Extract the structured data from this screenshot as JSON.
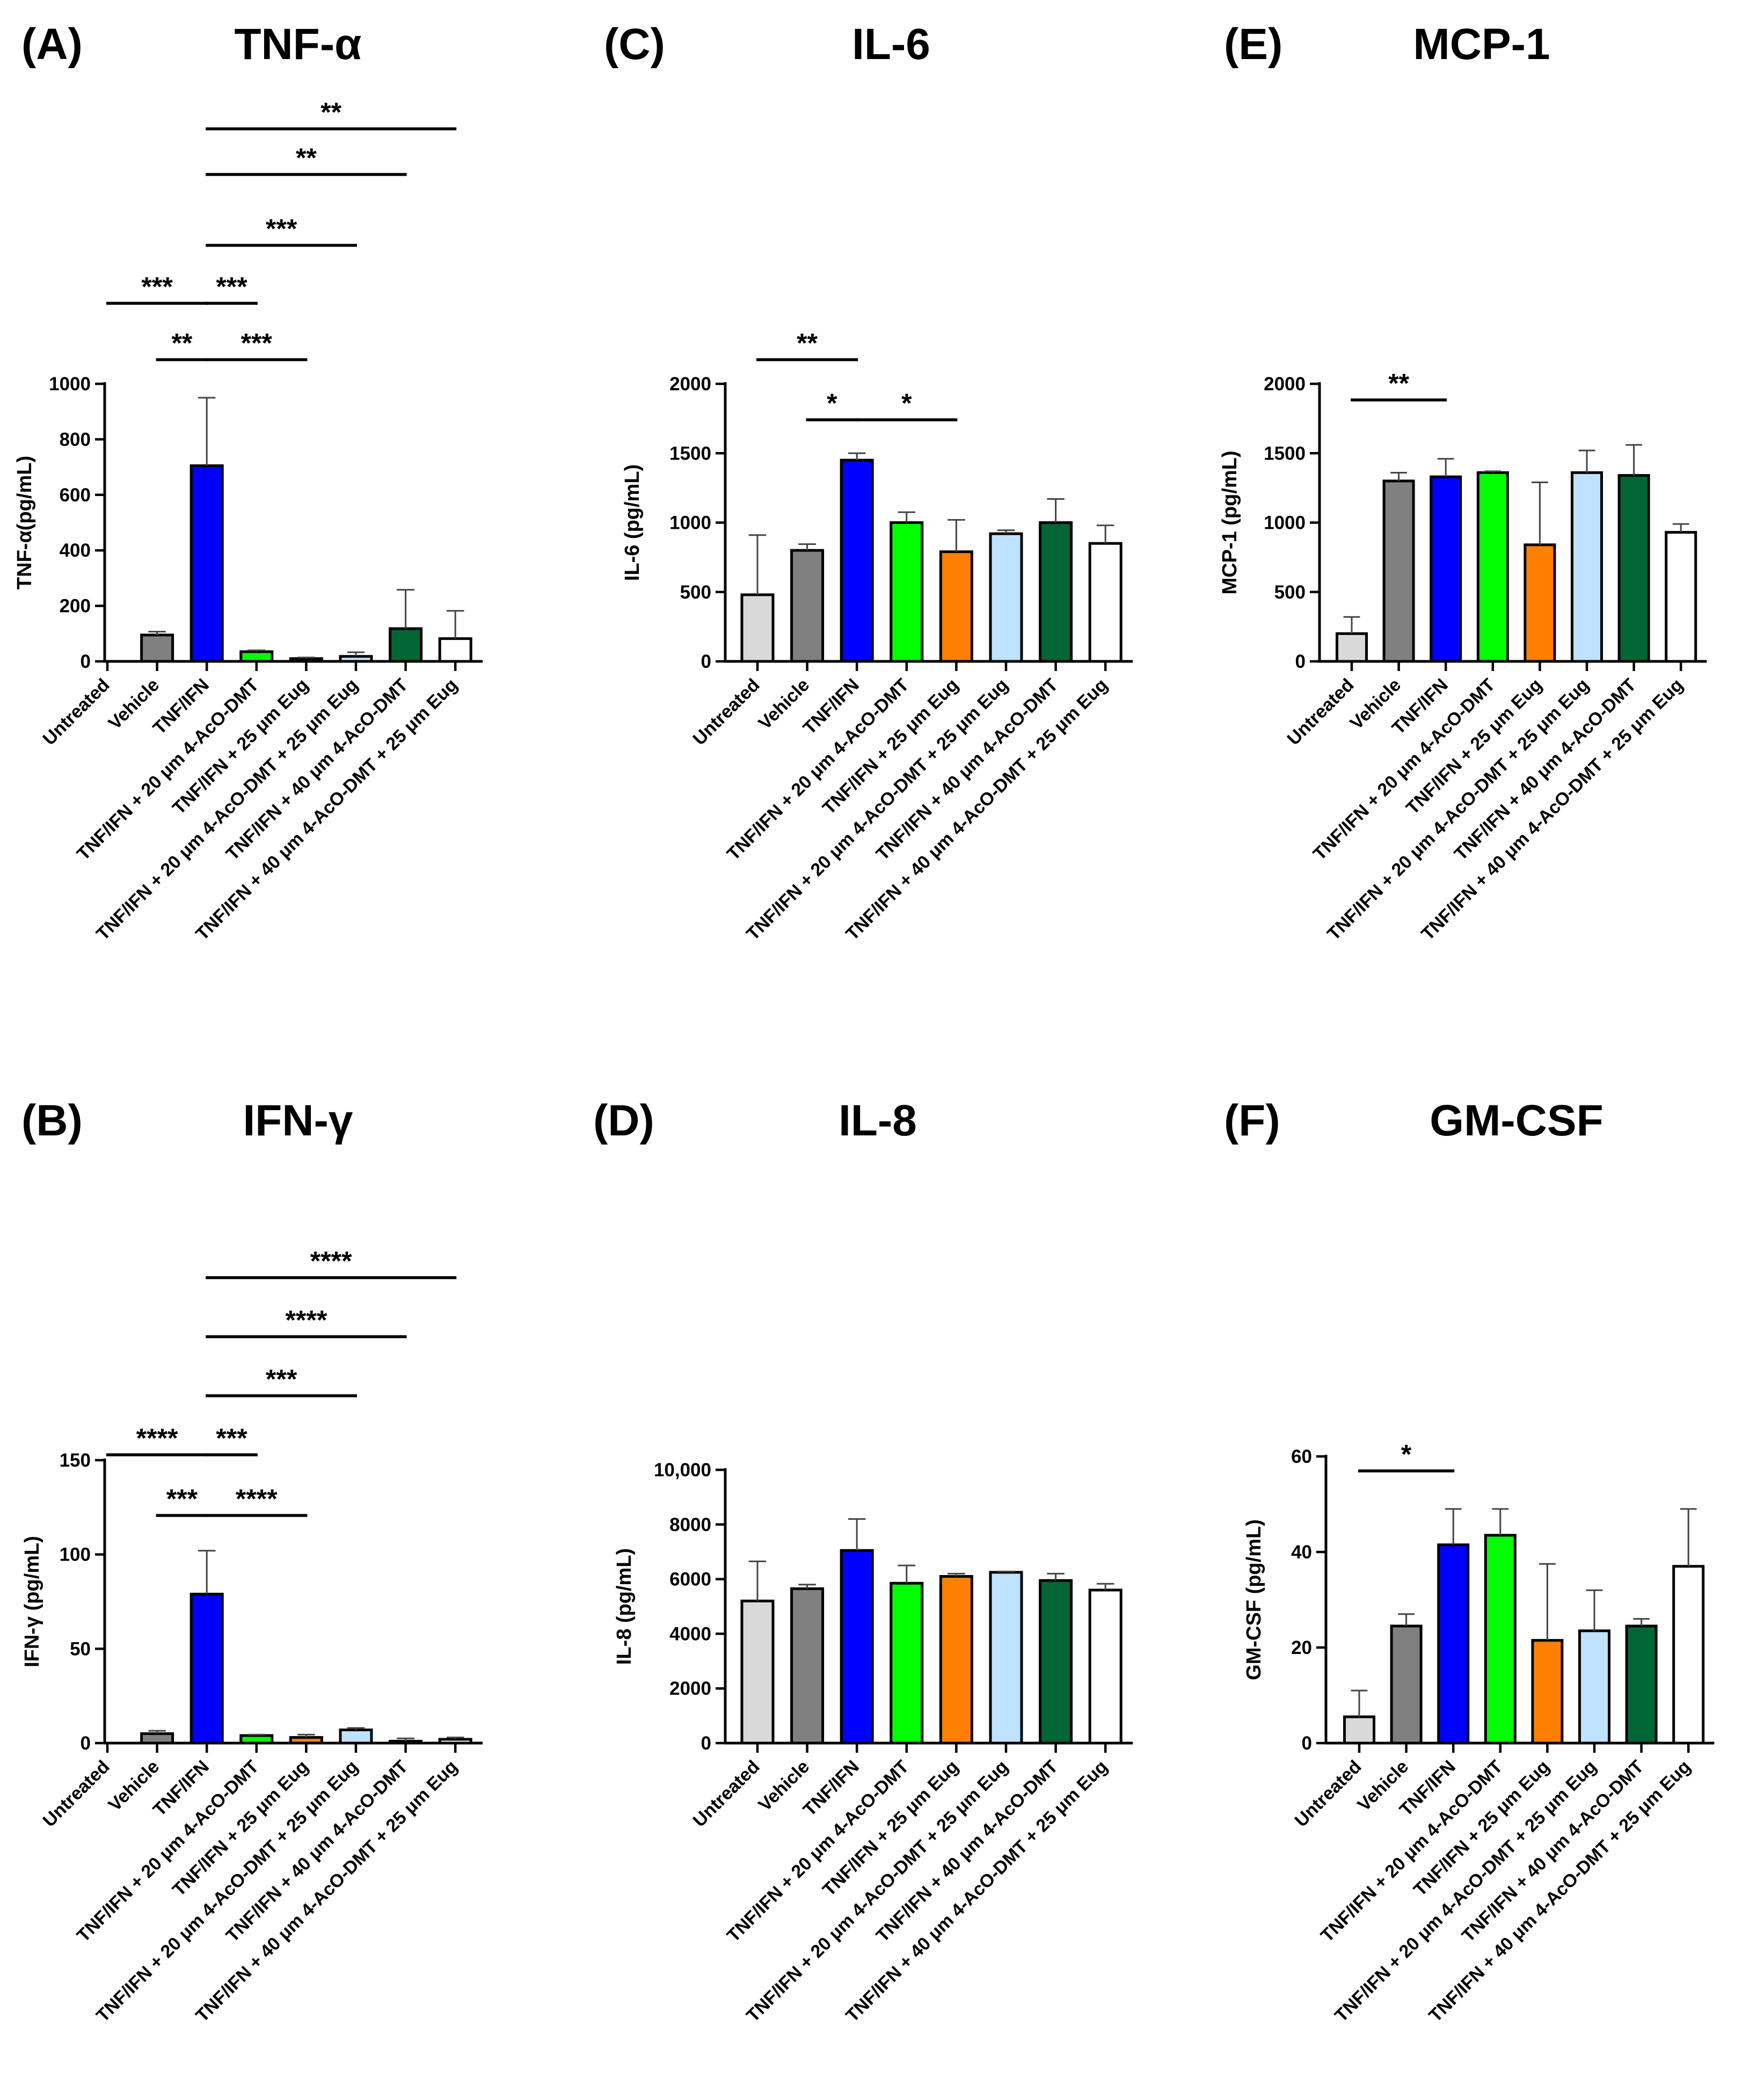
{
  "figure": {
    "categories": [
      "Untreated",
      "Vehicle",
      "TNF/IFN",
      "TNF/IFN + 20 μm 4-AcO-DMT",
      "TNF/IFN + 25 μm Eug",
      "TNF/IFN + 20 μm 4-AcO-DMT + 25 μm Eug",
      "TNF/IFN + 40 μm 4-AcO-DMT",
      "TNF/IFN + 40 μm 4-AcO-DMT + 25 μm Eug"
    ],
    "bar_colors": [
      "#d9d9d9",
      "#808080",
      "#0000ff",
      "#00ff00",
      "#ff8000",
      "#bfe2ff",
      "#006633",
      "#ffffff"
    ]
  },
  "chart_data": [
    {
      "id": "A",
      "panel_label": "(A)",
      "title": "TNF-α",
      "type": "bar",
      "ylabel": "TNF-α(pg/mL)",
      "ylim": [
        0,
        1000
      ],
      "yticks": [
        0,
        200,
        400,
        600,
        800,
        1000
      ],
      "ytick_labels": [
        "0",
        "200",
        "400",
        "600",
        "800",
        "1000"
      ],
      "values": [
        0,
        95,
        705,
        35,
        10,
        18,
        118,
        82
      ],
      "errors": [
        0,
        12,
        245,
        5,
        4,
        15,
        140,
        100
      ],
      "significance": [
        {
          "from": 0,
          "to": 2,
          "label": "***"
        },
        {
          "from": 1,
          "to": 2,
          "label": "**"
        },
        {
          "from": 2,
          "to": 3,
          "label": "***"
        },
        {
          "from": 2,
          "to": 4,
          "label": "***"
        },
        {
          "from": 2,
          "to": 5,
          "label": "***"
        },
        {
          "from": 2,
          "to": 6,
          "label": "**"
        },
        {
          "from": 2,
          "to": 7,
          "label": "**"
        }
      ]
    },
    {
      "id": "B",
      "panel_label": "(B)",
      "title": "IFN-γ",
      "type": "bar",
      "ylabel": "IFN-γ (pg/mL)",
      "ylim": [
        0,
        150
      ],
      "yticks": [
        0,
        50,
        100,
        150
      ],
      "ytick_labels": [
        "0",
        "50",
        "100",
        "150"
      ],
      "values": [
        0,
        5,
        79,
        4,
        3,
        7,
        1,
        2
      ],
      "errors": [
        0,
        1.5,
        23,
        0.5,
        1.5,
        1,
        1.5,
        1
      ],
      "significance": [
        {
          "from": 0,
          "to": 2,
          "label": "****"
        },
        {
          "from": 1,
          "to": 2,
          "label": "***"
        },
        {
          "from": 2,
          "to": 3,
          "label": "***"
        },
        {
          "from": 2,
          "to": 4,
          "label": "****"
        },
        {
          "from": 2,
          "to": 5,
          "label": "***"
        },
        {
          "from": 2,
          "to": 6,
          "label": "****"
        },
        {
          "from": 2,
          "to": 7,
          "label": "****"
        }
      ]
    },
    {
      "id": "C",
      "panel_label": "(C)",
      "title": "IL-6",
      "type": "bar",
      "ylabel": "IL-6 (pg/mL)",
      "ylim": [
        0,
        2000
      ],
      "yticks": [
        0,
        500,
        1000,
        1500,
        2000
      ],
      "ytick_labels": [
        "0",
        "500",
        "1000",
        "1500",
        "2000"
      ],
      "values": [
        480,
        800,
        1450,
        1000,
        790,
        920,
        1000,
        850
      ],
      "errors": [
        430,
        45,
        50,
        75,
        230,
        25,
        170,
        130
      ],
      "significance": [
        {
          "from": 0,
          "to": 2,
          "label": "**"
        },
        {
          "from": 1,
          "to": 2,
          "label": "*"
        },
        {
          "from": 2,
          "to": 4,
          "label": "*"
        }
      ]
    },
    {
      "id": "D",
      "panel_label": "(D)",
      "title": "IL-8",
      "type": "bar",
      "ylabel": "IL-8 (pg/mL)",
      "ylim": [
        0,
        10000
      ],
      "yticks": [
        0,
        2000,
        4000,
        6000,
        8000,
        10000
      ],
      "ytick_labels": [
        "0",
        "2000",
        "4000",
        "6000",
        "8000",
        "10,000"
      ],
      "values": [
        5200,
        5650,
        7050,
        5850,
        6100,
        6250,
        5950,
        5600
      ],
      "errors": [
        1450,
        150,
        1150,
        650,
        100,
        30,
        250,
        230
      ],
      "significance": []
    },
    {
      "id": "E",
      "panel_label": "(E)",
      "title": "MCP-1",
      "type": "bar",
      "ylabel": "MCP-1 (pg/mL)",
      "ylim": [
        0,
        2000
      ],
      "yticks": [
        0,
        500,
        1000,
        1500,
        2000
      ],
      "ytick_labels": [
        "0",
        "500",
        "1000",
        "1500",
        "2000"
      ],
      "values": [
        200,
        1300,
        1330,
        1360,
        840,
        1360,
        1340,
        930
      ],
      "errors": [
        120,
        60,
        130,
        10,
        450,
        160,
        220,
        60
      ],
      "significance": [
        {
          "from": 0,
          "to": 2,
          "label": "**"
        }
      ]
    },
    {
      "id": "F",
      "panel_label": "(F)",
      "title": "GM-CSF",
      "type": "bar",
      "ylabel": "GM-CSF (pg/mL)",
      "ylim": [
        0,
        60
      ],
      "yticks": [
        0,
        20,
        40,
        60
      ],
      "ytick_labels": [
        "0",
        "20",
        "40",
        "60"
      ],
      "values": [
        5.5,
        24.5,
        41.5,
        43.5,
        21.5,
        23.5,
        24.5,
        37
      ],
      "errors": [
        5.5,
        2.5,
        7.5,
        5.5,
        16,
        8.5,
        1.5,
        12
      ],
      "significance": [
        {
          "from": 0,
          "to": 2,
          "label": "*"
        }
      ]
    }
  ]
}
